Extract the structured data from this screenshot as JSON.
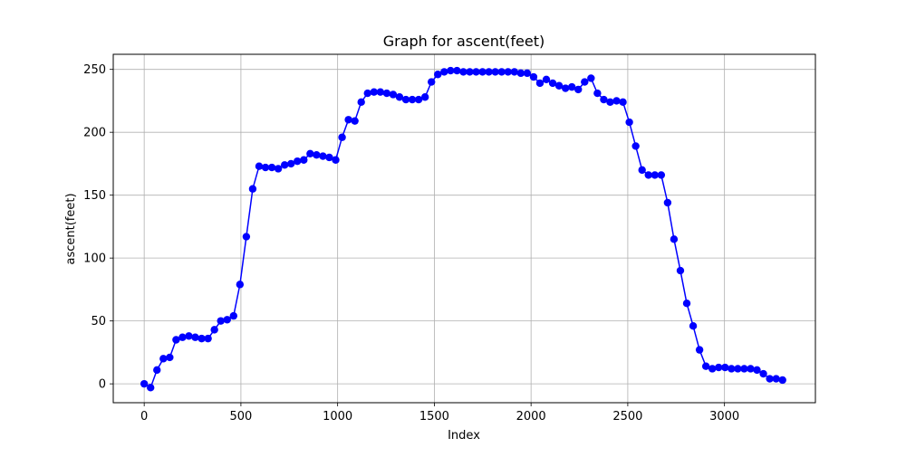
{
  "chart_data": {
    "type": "line",
    "title": "Graph for ascent(feet)",
    "xlabel": "Index",
    "ylabel": "ascent(feet)",
    "xlim": [
      -160,
      3470
    ],
    "ylim": [
      -15,
      262
    ],
    "xticks": [
      0,
      500,
      1000,
      1500,
      2000,
      2500,
      3000
    ],
    "yticks": [
      0,
      50,
      100,
      150,
      200,
      250
    ],
    "grid": true,
    "series": [
      {
        "color": "#0000ff",
        "marker": "circle",
        "x": [
          0,
          33,
          66,
          99,
          132,
          165,
          198,
          231,
          264,
          297,
          330,
          363,
          396,
          429,
          462,
          495,
          528,
          561,
          594,
          627,
          660,
          693,
          726,
          759,
          792,
          825,
          858,
          891,
          924,
          957,
          990,
          1023,
          1056,
          1089,
          1122,
          1155,
          1188,
          1221,
          1254,
          1287,
          1320,
          1353,
          1386,
          1419,
          1452,
          1485,
          1518,
          1551,
          1584,
          1617,
          1650,
          1683,
          1716,
          1749,
          1782,
          1815,
          1848,
          1881,
          1914,
          1947,
          1980,
          2013,
          2046,
          2079,
          2112,
          2145,
          2178,
          2211,
          2244,
          2277,
          2310,
          2343,
          2376,
          2409,
          2442,
          2475,
          2508,
          2541,
          2574,
          2607,
          2640,
          2673,
          2706,
          2739,
          2772,
          2805,
          2838,
          2871,
          2904,
          2937,
          2970,
          3003,
          3036,
          3069,
          3102,
          3135,
          3168,
          3201,
          3234,
          3267,
          3300
        ],
        "y": [
          0,
          -3,
          11,
          20,
          21,
          35,
          37,
          38,
          37,
          36,
          36,
          43,
          50,
          51,
          54,
          79,
          117,
          155,
          173,
          172,
          172,
          171,
          174,
          175,
          177,
          178,
          183,
          182,
          181,
          180,
          178,
          196,
          210,
          209,
          224,
          231,
          232,
          232,
          231,
          230,
          228,
          226,
          226,
          226,
          228,
          240,
          246,
          248,
          249,
          249,
          248,
          248,
          248,
          248,
          248,
          248,
          248,
          248,
          248,
          247,
          247,
          244,
          239,
          242,
          239,
          237,
          235,
          236,
          234,
          240,
          243,
          231,
          226,
          224,
          225,
          224,
          208,
          189,
          170,
          166,
          166,
          166,
          144,
          115,
          90,
          64,
          46,
          27,
          14,
          12,
          13,
          13,
          12,
          12,
          12,
          12,
          11,
          8,
          4,
          4,
          3
        ]
      }
    ]
  }
}
